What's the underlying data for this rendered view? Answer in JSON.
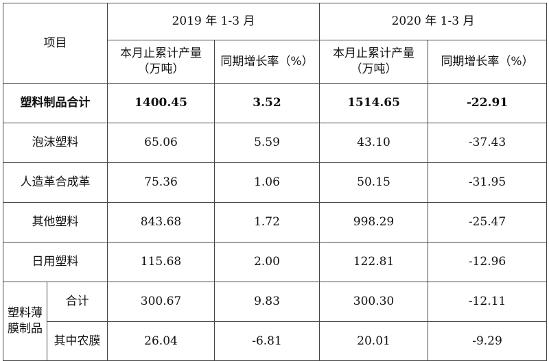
{
  "header": {
    "item_label": "项目",
    "period_2019": "2019 年 1-3 月",
    "period_2020": "2020 年 1-3 月",
    "cum_output_line1": "本月止累计产量",
    "cum_output_line2": "（万吨）",
    "growth_rate": "同期增长率（%）"
  },
  "rows": [
    {
      "name": "塑料制品合计",
      "v2019": "1400.45",
      "g2019": "3.52",
      "v2020": "1514.65",
      "g2020": "-22.91"
    },
    {
      "name": "泡沫塑料",
      "v2019": "65.06",
      "g2019": "5.59",
      "v2020": "43.10",
      "g2020": "-37.43"
    },
    {
      "name": "人造革合成革",
      "v2019": "75.36",
      "g2019": "1.06",
      "v2020": "50.15",
      "g2020": "-31.95"
    },
    {
      "name": "其他塑料",
      "v2019": "843.68",
      "g2019": "1.72",
      "v2020": "998.29",
      "g2020": "-25.47"
    },
    {
      "name": "日用塑料",
      "v2019": "115.68",
      "g2019": "2.00",
      "v2020": "122.81",
      "g2020": "-12.96"
    }
  ],
  "film_group": {
    "label_line1": "塑料薄",
    "label_line2": "膜制品",
    "rows": [
      {
        "name": "合计",
        "v2019": "300.67",
        "g2019": "9.83",
        "v2020": "300.30",
        "g2020": "-12.11"
      },
      {
        "name": "其中农膜",
        "v2019": "26.04",
        "g2019": "-6.81",
        "v2020": "20.01",
        "g2020": "-9.29"
      }
    ]
  }
}
